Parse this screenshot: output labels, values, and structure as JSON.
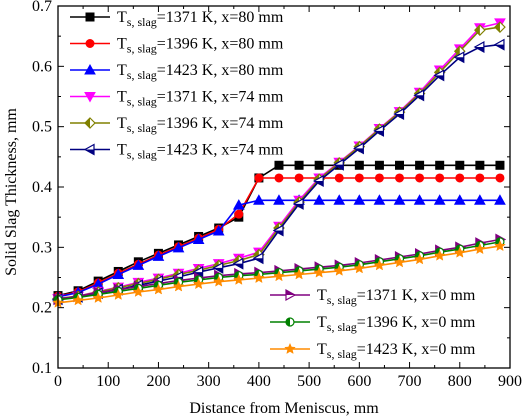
{
  "chart_data": {
    "type": "line",
    "title": "",
    "xlabel": "Distance from Meniscus, mm",
    "ylabel": "Solid Slag Thickness, mm",
    "xlim": [
      0,
      900
    ],
    "ylim": [
      0.1,
      0.7
    ],
    "xticks": [
      0,
      100,
      200,
      300,
      400,
      500,
      600,
      700,
      800,
      900
    ],
    "yticks": [
      0.1,
      0.2,
      0.3,
      0.4,
      0.5,
      0.6,
      0.7
    ],
    "grid": false,
    "legend_placement": [
      "upper-left",
      "lower-right"
    ],
    "series": [
      {
        "name_main": "T",
        "name_sub": "s, slag",
        "name_rest": "=1371 K, x=80 mm",
        "color": "#000000",
        "marker": "square",
        "x": [
          0,
          40,
          80,
          120,
          160,
          200,
          240,
          280,
          320,
          360,
          400,
          440,
          480,
          520,
          560,
          600,
          640,
          680,
          720,
          760,
          800,
          840,
          880
        ],
        "y": [
          0.22,
          0.228,
          0.244,
          0.26,
          0.276,
          0.29,
          0.304,
          0.318,
          0.332,
          0.35,
          0.415,
          0.436,
          0.436,
          0.436,
          0.436,
          0.436,
          0.436,
          0.436,
          0.436,
          0.436,
          0.436,
          0.436,
          0.436
        ]
      },
      {
        "name_main": "T",
        "name_sub": "s, slag",
        "name_rest": "=1396 K, x=80 mm",
        "color": "#ff0000",
        "marker": "circle",
        "x": [
          0,
          40,
          80,
          120,
          160,
          200,
          240,
          280,
          320,
          360,
          400,
          440,
          480,
          520,
          560,
          600,
          640,
          680,
          720,
          760,
          800,
          840,
          880
        ],
        "y": [
          0.219,
          0.226,
          0.241,
          0.257,
          0.272,
          0.287,
          0.301,
          0.315,
          0.33,
          0.355,
          0.415,
          0.415,
          0.415,
          0.415,
          0.415,
          0.415,
          0.415,
          0.415,
          0.415,
          0.415,
          0.415,
          0.415,
          0.415
        ]
      },
      {
        "name_main": "T",
        "name_sub": "s, slag",
        "name_rest": "=1423 K, x=80 mm",
        "color": "#0000ff",
        "marker": "triangle-up",
        "x": [
          0,
          40,
          80,
          120,
          160,
          200,
          240,
          280,
          320,
          360,
          400,
          440,
          480,
          520,
          560,
          600,
          640,
          680,
          720,
          760,
          800,
          840,
          880
        ],
        "y": [
          0.218,
          0.225,
          0.239,
          0.255,
          0.27,
          0.285,
          0.299,
          0.313,
          0.327,
          0.37,
          0.378,
          0.378,
          0.378,
          0.378,
          0.378,
          0.378,
          0.378,
          0.378,
          0.378,
          0.378,
          0.378,
          0.378,
          0.378
        ]
      },
      {
        "name_main": "T",
        "name_sub": "s, slag",
        "name_rest": "=1371 K, x=74 mm",
        "color": "#ff00ff",
        "marker": "triangle-down",
        "x": [
          0,
          40,
          80,
          120,
          160,
          200,
          240,
          280,
          320,
          360,
          400,
          440,
          480,
          520,
          560,
          600,
          640,
          680,
          720,
          760,
          800,
          840,
          880
        ],
        "y": [
          0.215,
          0.219,
          0.227,
          0.234,
          0.242,
          0.249,
          0.257,
          0.265,
          0.273,
          0.282,
          0.292,
          0.335,
          0.378,
          0.415,
          0.441,
          0.468,
          0.497,
          0.525,
          0.557,
          0.594,
          0.629,
          0.664,
          0.672
        ]
      },
      {
        "name_main": "T",
        "name_sub": "s, slag",
        "name_rest": "=1396 K, x=74 mm",
        "color": "#808000",
        "marker": "diamond-half",
        "x": [
          0,
          40,
          80,
          120,
          160,
          200,
          240,
          280,
          320,
          360,
          400,
          440,
          480,
          520,
          560,
          600,
          640,
          680,
          720,
          760,
          800,
          840,
          880
        ],
        "y": [
          0.215,
          0.219,
          0.226,
          0.233,
          0.24,
          0.247,
          0.255,
          0.262,
          0.27,
          0.278,
          0.288,
          0.332,
          0.375,
          0.413,
          0.44,
          0.467,
          0.496,
          0.524,
          0.555,
          0.59,
          0.625,
          0.66,
          0.665
        ]
      },
      {
        "name_main": "T",
        "name_sub": "s, slag",
        "name_rest": "=1423 K, x=74 mm",
        "color": "#000080",
        "marker": "triangle-left",
        "x": [
          0,
          40,
          80,
          120,
          160,
          200,
          240,
          280,
          320,
          360,
          400,
          440,
          480,
          520,
          560,
          600,
          640,
          680,
          720,
          760,
          800,
          840,
          880
        ],
        "y": [
          0.214,
          0.218,
          0.224,
          0.23,
          0.237,
          0.244,
          0.251,
          0.259,
          0.266,
          0.273,
          0.282,
          0.328,
          0.372,
          0.41,
          0.437,
          0.464,
          0.493,
          0.521,
          0.552,
          0.585,
          0.615,
          0.632,
          0.636
        ]
      },
      {
        "name_main": "T",
        "name_sub": "s, slag",
        "name_rest": "=1371 K, x=0 mm",
        "color": "#800080",
        "marker": "triangle-right",
        "x": [
          0,
          40,
          80,
          120,
          160,
          200,
          240,
          280,
          320,
          360,
          400,
          440,
          480,
          520,
          560,
          600,
          640,
          680,
          720,
          760,
          800,
          840,
          880
        ],
        "y": [
          0.214,
          0.219,
          0.225,
          0.23,
          0.235,
          0.24,
          0.245,
          0.249,
          0.253,
          0.256,
          0.258,
          0.261,
          0.264,
          0.267,
          0.27,
          0.274,
          0.279,
          0.284,
          0.289,
          0.295,
          0.3,
          0.307,
          0.313
        ]
      },
      {
        "name_main": "T",
        "name_sub": "s, slag",
        "name_rest": "=1396 K, x=0 mm",
        "color": "#008000",
        "marker": "circle-half",
        "x": [
          0,
          40,
          80,
          120,
          160,
          200,
          240,
          280,
          320,
          360,
          400,
          440,
          480,
          520,
          560,
          600,
          640,
          680,
          720,
          760,
          800,
          840,
          880
        ],
        "y": [
          0.213,
          0.217,
          0.222,
          0.227,
          0.232,
          0.237,
          0.242,
          0.246,
          0.25,
          0.253,
          0.255,
          0.258,
          0.261,
          0.264,
          0.267,
          0.271,
          0.276,
          0.281,
          0.286,
          0.292,
          0.297,
          0.303,
          0.309
        ]
      },
      {
        "name_main": "T",
        "name_sub": "s, slag",
        "name_rest": "=1423 K, x=0 mm",
        "color": "#ff8c00",
        "marker": "star",
        "x": [
          0,
          40,
          80,
          120,
          160,
          200,
          240,
          280,
          320,
          360,
          400,
          440,
          480,
          520,
          560,
          600,
          640,
          680,
          720,
          760,
          800,
          840,
          880
        ],
        "y": [
          0.208,
          0.212,
          0.216,
          0.221,
          0.226,
          0.23,
          0.235,
          0.239,
          0.243,
          0.246,
          0.249,
          0.252,
          0.255,
          0.258,
          0.261,
          0.265,
          0.27,
          0.275,
          0.28,
          0.286,
          0.291,
          0.297,
          0.302
        ]
      }
    ]
  }
}
